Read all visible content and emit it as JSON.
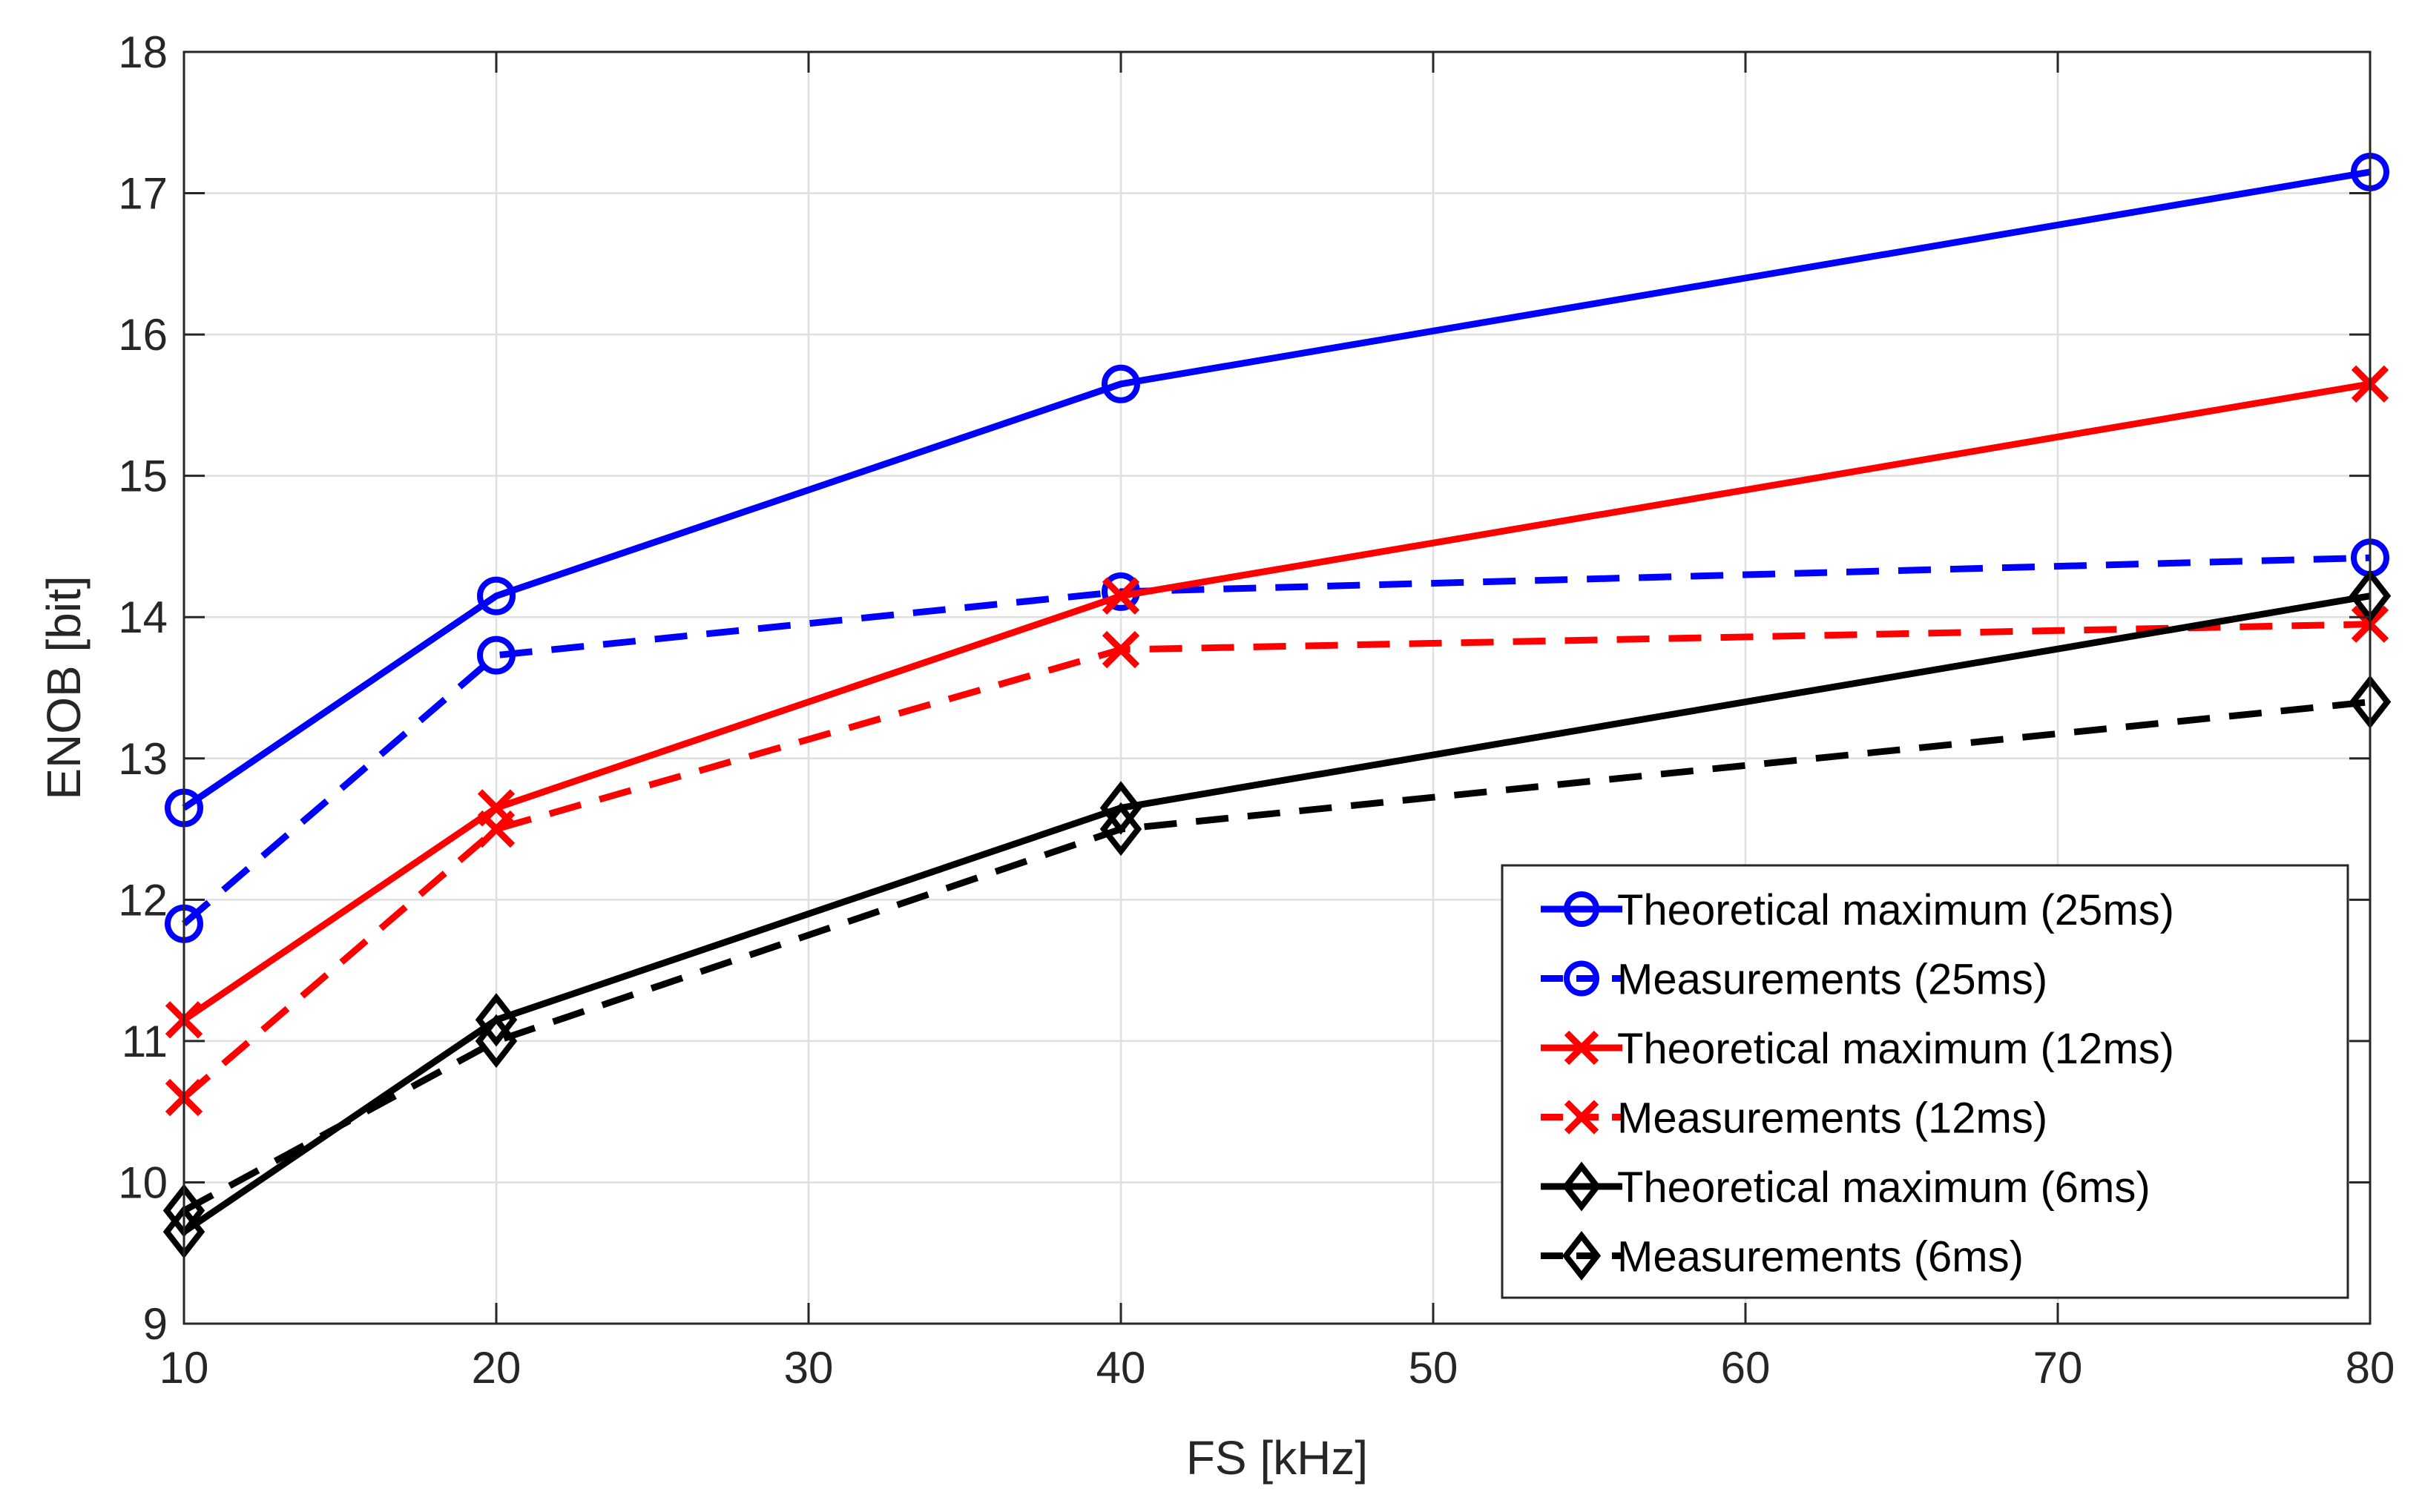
{
  "chart_data": {
    "type": "line",
    "title": "",
    "xlabel": "FS [kHz]",
    "ylabel": "ENOB [bit]",
    "xlim": [
      10,
      80
    ],
    "ylim": [
      9,
      18
    ],
    "xticks": [
      10,
      20,
      30,
      40,
      50,
      60,
      70,
      80
    ],
    "yticks": [
      9,
      10,
      11,
      12,
      13,
      14,
      15,
      16,
      17,
      18
    ],
    "grid": true,
    "legend_position": "bottom-right",
    "x": [
      10,
      20,
      40,
      80
    ],
    "series": [
      {
        "name": "Theoretical maximum (25ms)",
        "color": "#0000ff",
        "dash": "solid",
        "marker": "circle",
        "values": [
          12.65,
          14.15,
          15.65,
          17.15
        ]
      },
      {
        "name": "Measurements (25ms)",
        "color": "#0000ff",
        "dash": "dashed",
        "marker": "circle",
        "values": [
          11.83,
          13.73,
          14.18,
          14.42
        ]
      },
      {
        "name": "Theoretical maximum (12ms)",
        "color": "#ff0000",
        "dash": "solid",
        "marker": "x",
        "values": [
          11.15,
          12.65,
          14.15,
          15.65
        ]
      },
      {
        "name": "Measurements (12ms)",
        "color": "#ff0000",
        "dash": "dashed",
        "marker": "x",
        "values": [
          10.6,
          12.5,
          13.77,
          13.95
        ]
      },
      {
        "name": "Theoretical maximum (6ms)",
        "color": "#000000",
        "dash": "solid",
        "marker": "diamond",
        "values": [
          9.65,
          11.15,
          12.65,
          14.15
        ]
      },
      {
        "name": "Measurements (6ms)",
        "color": "#000000",
        "dash": "dashed",
        "marker": "diamond",
        "values": [
          9.8,
          11.0,
          12.5,
          13.4
        ]
      }
    ]
  }
}
